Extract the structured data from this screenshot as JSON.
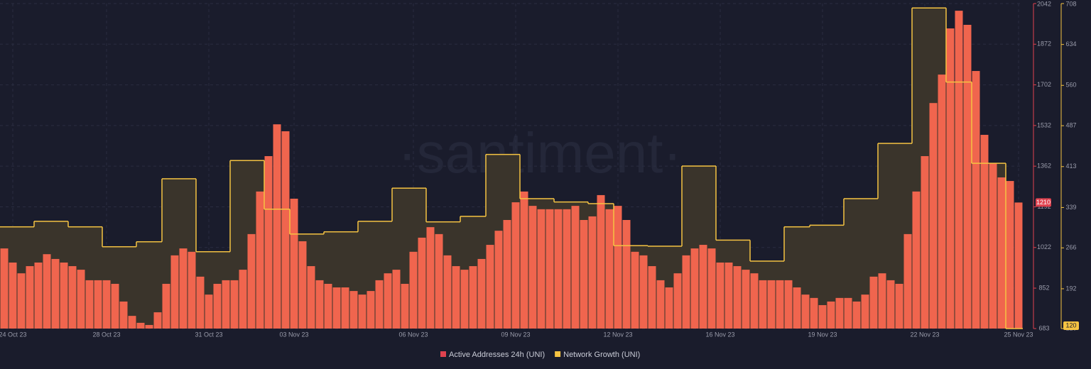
{
  "chart_data": {
    "type": "bar-step",
    "watermark": "·santiment·",
    "categories": [
      null,
      "24 Oct 23",
      null,
      null,
      null,
      null,
      null,
      null,
      null,
      null,
      null,
      null,
      "28 Oct 23",
      null,
      null,
      null,
      null,
      null,
      null,
      null,
      null,
      null,
      null,
      null,
      "31 Oct 23",
      null,
      null,
      null,
      null,
      null,
      null,
      null,
      null,
      null,
      "03 Nov 23",
      null,
      null,
      null,
      null,
      null,
      null,
      null,
      null,
      null,
      null,
      null,
      null,
      null,
      "06 Nov 23",
      null,
      null,
      null,
      null,
      null,
      null,
      null,
      null,
      null,
      null,
      null,
      "09 Nov 23",
      null,
      null,
      null,
      null,
      null,
      null,
      null,
      null,
      null,
      null,
      null,
      "12 Nov 23",
      null,
      null,
      null,
      null,
      null,
      null,
      null,
      null,
      null,
      null,
      null,
      "16 Nov 23",
      null,
      null,
      null,
      null,
      null,
      null,
      null,
      null,
      null,
      null,
      null,
      "19 Nov 23",
      null,
      null,
      null,
      null,
      null,
      null,
      null,
      null,
      null,
      null,
      null,
      "22 Nov 23",
      null,
      null,
      null,
      null,
      null,
      null,
      null,
      null,
      null,
      null,
      "25 Nov 23"
    ],
    "series": [
      {
        "name": "Active Addresses 24h (UNI)",
        "type": "bar",
        "color": "#f0654e",
        "axis": "y",
        "values": [
          1018,
          959,
          914,
          944,
          959,
          994,
          974,
          959,
          944,
          929,
          885,
          885,
          885,
          870,
          796,
          736,
          707,
          698,
          751,
          870,
          989,
          1018,
          1004,
          900,
          825,
          870,
          885,
          885,
          929,
          1078,
          1256,
          1404,
          1537,
          1508,
          1226,
          1048,
          944,
          885,
          870,
          855,
          855,
          840,
          825,
          840,
          885,
          914,
          929,
          870,
          1004,
          1063,
          1107,
          1078,
          989,
          944,
          929,
          944,
          974,
          1033,
          1092,
          1137,
          1211,
          1256,
          1196,
          1182,
          1182,
          1182,
          1182,
          1196,
          1137,
          1152,
          1241,
          1182,
          1196,
          1137,
          1004,
          989,
          944,
          885,
          855,
          914,
          989,
          1018,
          1033,
          1018,
          959,
          959,
          944,
          929,
          914,
          885,
          885,
          885,
          885,
          855,
          825,
          811,
          781,
          796,
          811,
          811,
          796,
          825,
          900,
          914,
          885,
          870,
          1078,
          1256,
          1404,
          1626,
          1745,
          1938,
          2012,
          1953,
          1760,
          1493,
          1374,
          1315,
          1300,
          1210
        ]
      },
      {
        "name": "Network Growth (UNI)",
        "type": "step",
        "color": "#f5c342",
        "axis": "y2",
        "values": [
          304,
          304,
          304,
          304,
          314,
          314,
          314,
          314,
          304,
          304,
          304,
          304,
          268,
          268,
          268,
          268,
          277,
          277,
          277,
          391,
          391,
          391,
          391,
          259,
          259,
          259,
          259,
          424,
          424,
          424,
          424,
          336,
          336,
          336,
          291,
          291,
          291,
          291,
          295,
          295,
          295,
          295,
          314,
          314,
          314,
          314,
          374,
          374,
          374,
          374,
          313,
          313,
          313,
          313,
          323,
          323,
          323,
          435,
          435,
          435,
          435,
          355,
          355,
          355,
          355,
          349,
          349,
          349,
          349,
          346,
          346,
          346,
          270,
          270,
          270,
          270,
          269,
          269,
          269,
          269,
          414,
          414,
          414,
          414,
          280,
          280,
          280,
          280,
          242,
          242,
          242,
          242,
          304,
          304,
          304,
          307,
          307,
          307,
          307,
          355,
          355,
          355,
          355,
          455,
          455,
          455,
          455,
          700,
          700,
          700,
          700,
          566,
          566,
          566,
          419,
          419,
          419,
          419,
          120,
          120
        ]
      }
    ],
    "ylim": [
      683,
      2042
    ],
    "yticks": [
      683,
      852,
      1022,
      1192,
      1362,
      1532,
      1702,
      1872,
      2042
    ],
    "y2lim": [
      120,
      708
    ],
    "y2ticks": [
      120,
      192,
      266,
      339,
      413,
      487,
      560,
      634,
      708
    ],
    "grid": true
  }
}
